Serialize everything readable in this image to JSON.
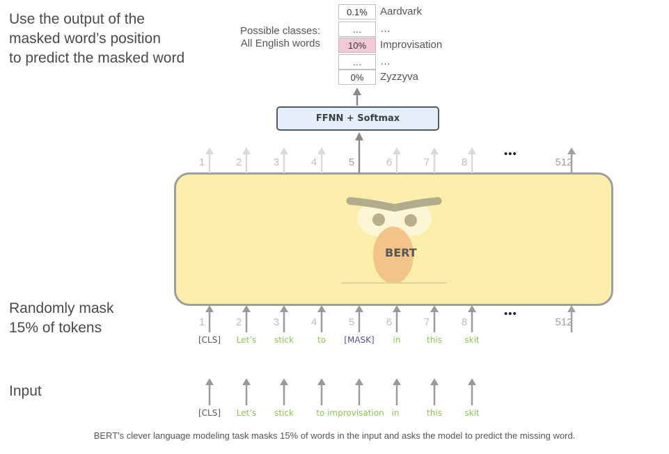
{
  "left_text": {
    "top_line1": "Use the output of the",
    "top_line2": "masked word’s position",
    "top_line3": "to predict the masked word",
    "mask_line1": "Randomly mask",
    "mask_line2": "15% of tokens",
    "input": "Input"
  },
  "classes_label": {
    "line1": "Possible classes:",
    "line2": "All English words"
  },
  "probabilities": [
    {
      "prob": "0.1%",
      "word": "Aardvark"
    },
    {
      "prob": "…",
      "word": "…"
    },
    {
      "prob": "10%",
      "word": "Improvisation"
    },
    {
      "prob": "…",
      "word": "…"
    },
    {
      "prob": "0%",
      "word": "Zyzzyva"
    }
  ],
  "ffnn_label": "FFNN + Softmax",
  "bert_label": "BERT",
  "top_positions": [
    "1",
    "2",
    "3",
    "4",
    "5",
    "6",
    "7",
    "8",
    "512"
  ],
  "mid_positions": [
    "1",
    "2",
    "3",
    "4",
    "5",
    "6",
    "7",
    "8",
    "512"
  ],
  "ellipsis": "•••",
  "masked_tokens": [
    "[CLS]",
    "Let’s",
    "stick",
    "to",
    "[MASK]",
    "in",
    "this",
    "skit"
  ],
  "input_tokens": [
    "[CLS]",
    "Let’s",
    "stick",
    "to improvisation",
    "in",
    "this",
    "skit"
  ],
  "caption": "BERT's clever language modeling task masks 15% of words in the input and asks the model to predict the missing word.",
  "colors": {
    "green": "#8dc44e",
    "purple": "#5b4a9e",
    "highlight": "#f3c9d8",
    "bert_fill": "#fbeeaa",
    "face": "#f2c48a"
  }
}
